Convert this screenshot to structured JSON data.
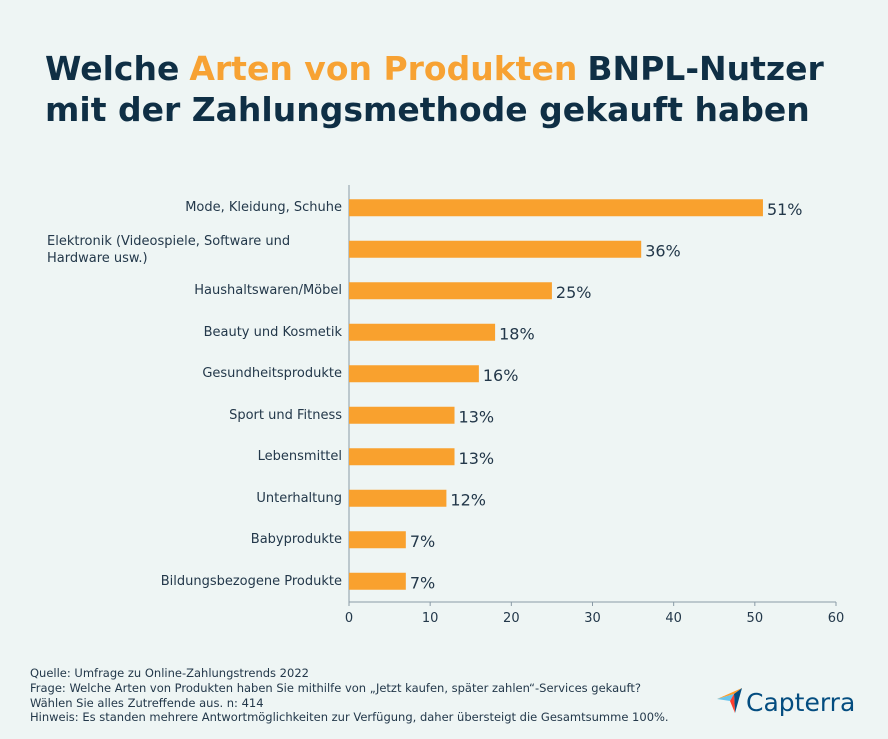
{
  "chart_data": {
    "type": "bar",
    "orientation": "horizontal",
    "title_parts": [
      {
        "text": "Welche",
        "color": "#0f2f45"
      },
      {
        "text": "Arten von Produkten",
        "color": "#f7a233"
      },
      {
        "text": "BNPL-Nutzer",
        "color": "#0f2f45"
      }
    ],
    "title_line2": "mit der Zahlungsmethode gekauft haben",
    "categories": [
      "Mode, Kleidung, Schuhe",
      "Elektronik (Videospiele, Software und Hardware usw.)",
      "Haushaltswaren/Möbel",
      "Beauty und Kosmetik",
      "Gesundheitsprodukte",
      "Sport und Fitness",
      "Lebensmittel",
      "Unterhaltung",
      "Babyprodukte",
      "Bildungsbezogene Produkte"
    ],
    "values": [
      51,
      36,
      25,
      18,
      16,
      13,
      13,
      12,
      7,
      7
    ],
    "value_labels": [
      "51%",
      "36%",
      "25%",
      "18%",
      "16%",
      "13%",
      "13%",
      "12%",
      "7%",
      "7%"
    ],
    "color": "#f9a12e",
    "xlim": [
      0,
      60
    ],
    "xticks": [
      0,
      10,
      20,
      30,
      40,
      50,
      60
    ],
    "grid": false
  },
  "footer": {
    "source": "Quelle: Umfrage zu Online-Zahlungstrends 2022",
    "question": "Frage: Welche Arten von Produkten haben Sie mithilfe von „Jetzt kaufen, später zahlen“-Services gekauft? Wählen Sie alles Zutreffende aus. n: 414",
    "note": "Hinweis: Es standen mehrere Antwortmöglichkeiten zur Verfügung, daher übersteigt die Gesamtsumme 100%.",
    "brand": "Capterra"
  }
}
